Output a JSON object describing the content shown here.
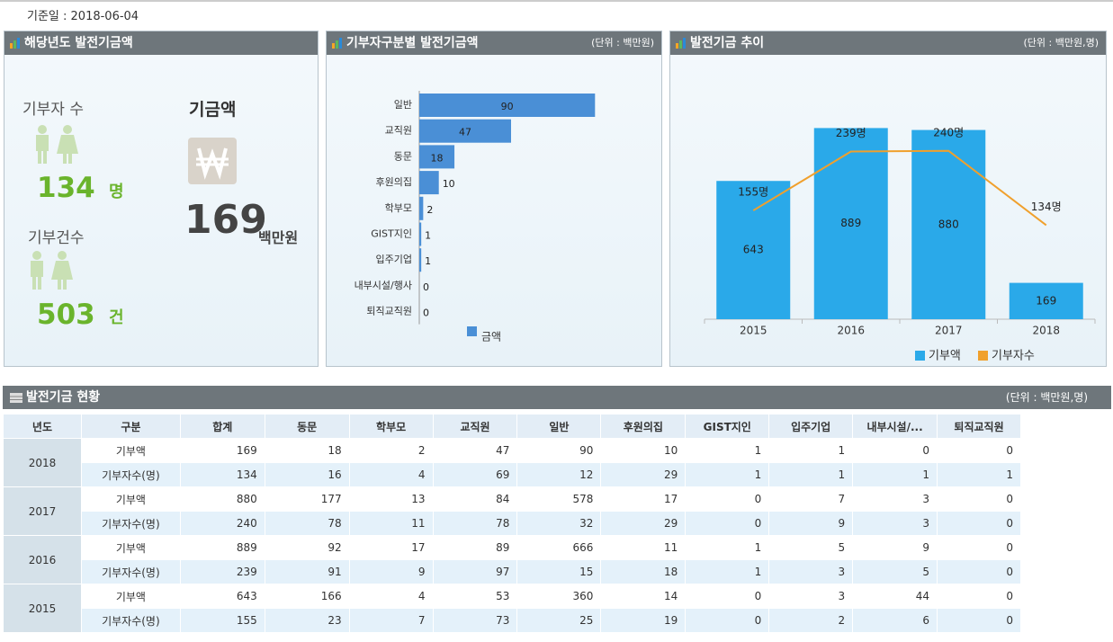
{
  "header": {
    "date_label": "기준일 : 2018-06-04"
  },
  "summary": {
    "title": "해당년도 발전기금액",
    "donors_label": "기부자 수",
    "donors_value": "134",
    "donors_unit": "명",
    "count_label": "기부건수",
    "count_value": "503",
    "count_unit": "건",
    "amount_label": "기금액",
    "amount_value": "169",
    "amount_unit": "백만원"
  },
  "donation_by_type": {
    "title": "기부자구분별 발전기금액",
    "unit": "(단위 : 백만원)",
    "type": "bar",
    "orientation": "horizontal",
    "categories": [
      "일반",
      "교직원",
      "동문",
      "후원의집",
      "학부모",
      "GIST지인",
      "입주기업",
      "내부시설/행사",
      "퇴직교직원"
    ],
    "series": [
      {
        "name": "금액",
        "color": "#4a8fd6",
        "values": [
          90,
          47,
          18,
          10,
          2,
          1,
          1,
          0,
          0
        ]
      }
    ],
    "xlim": [
      0,
      100
    ]
  },
  "trend": {
    "title": "발전기금 추이",
    "unit": "(단위 : 백만원,명)",
    "type": "bar",
    "categories": [
      "2015",
      "2016",
      "2017",
      "2018"
    ],
    "series": [
      {
        "name": "기부액",
        "color": "#2aa9e9",
        "values": [
          643,
          889,
          880,
          169
        ]
      },
      {
        "name": "기부자수",
        "color": "#f0a02c",
        "type": "line",
        "axis": "y2",
        "values": [
          155,
          239,
          240,
          134
        ],
        "value_labels": [
          "155명",
          "239명",
          "240명",
          "134명"
        ]
      }
    ],
    "ylim": [
      0,
      920
    ],
    "y2lim": [
      0,
      282
    ]
  },
  "table": {
    "title": "발전기금 현황",
    "unit": "(단위 : 백만원,명)",
    "columns": [
      "년도",
      "구분",
      "합계",
      "동문",
      "학부모",
      "교직원",
      "일반",
      "후원의집",
      "GIST지인",
      "입주기업",
      "내부시설/...",
      "퇴직교직원"
    ],
    "groups": [
      {
        "year": "2018",
        "rows": [
          [
            "기부액",
            169,
            18,
            2,
            47,
            90,
            10,
            1,
            1,
            0,
            0
          ],
          [
            "기부자수(명)",
            134,
            16,
            4,
            69,
            12,
            29,
            1,
            1,
            1,
            1
          ]
        ]
      },
      {
        "year": "2017",
        "rows": [
          [
            "기부액",
            880,
            177,
            13,
            84,
            578,
            17,
            0,
            7,
            3,
            0
          ],
          [
            "기부자수(명)",
            240,
            78,
            11,
            78,
            32,
            29,
            0,
            9,
            3,
            0
          ]
        ]
      },
      {
        "year": "2016",
        "rows": [
          [
            "기부액",
            889,
            92,
            17,
            89,
            666,
            11,
            1,
            5,
            9,
            0
          ],
          [
            "기부자수(명)",
            239,
            91,
            9,
            97,
            15,
            18,
            1,
            3,
            5,
            0
          ]
        ]
      },
      {
        "year": "2015",
        "rows": [
          [
            "기부액",
            643,
            166,
            4,
            53,
            360,
            14,
            0,
            3,
            44,
            0
          ],
          [
            "기부자수(명)",
            155,
            23,
            7,
            73,
            25,
            19,
            0,
            2,
            6,
            0
          ]
        ]
      }
    ]
  }
}
